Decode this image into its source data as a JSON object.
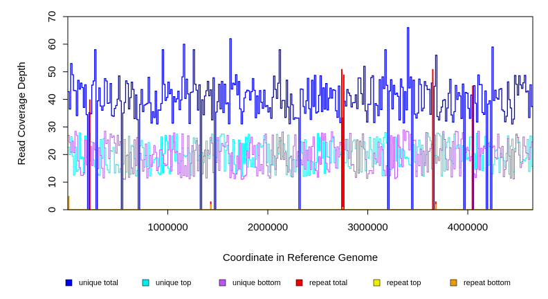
{
  "chart_data": {
    "type": "line",
    "title": "",
    "xlabel": "Coordinate in Reference Genome",
    "ylabel": "Read Coverage Depth",
    "xlim": [
      0,
      4650000
    ],
    "ylim": [
      0,
      70
    ],
    "x_ticks": [
      1000000,
      2000000,
      3000000,
      4000000
    ],
    "y_ticks": [
      0,
      10,
      20,
      30,
      40,
      50,
      60,
      70
    ],
    "grid": false,
    "legend_position": "bottom",
    "series": [
      {
        "key": "unique_total",
        "name": "unique total",
        "color": "#0000ee"
      },
      {
        "key": "unique_top",
        "name": "unique top",
        "color": "#00eeee"
      },
      {
        "key": "unique_bottom",
        "name": "unique bottom",
        "color": "#bb55ee"
      },
      {
        "key": "repeat_total",
        "name": "repeat total",
        "color": "#ee0000"
      },
      {
        "key": "repeat_top",
        "name": "repeat top",
        "color": "#eeee00"
      },
      {
        "key": "repeat_bottom",
        "name": "repeat bottom",
        "color": "#ee9900"
      }
    ],
    "unique_total_peaks": [
      {
        "x": 30000,
        "y": 53
      },
      {
        "x": 270000,
        "y": 58
      },
      {
        "x": 950000,
        "y": 58
      },
      {
        "x": 1160000,
        "y": 60
      },
      {
        "x": 1250000,
        "y": 58
      },
      {
        "x": 1620000,
        "y": 62
      },
      {
        "x": 2120000,
        "y": 58
      },
      {
        "x": 2960000,
        "y": 52
      },
      {
        "x": 3170000,
        "y": 58
      },
      {
        "x": 3400000,
        "y": 66
      },
      {
        "x": 3680000,
        "y": 56
      },
      {
        "x": 4240000,
        "y": 59
      }
    ],
    "unique_total_dropouts": [
      200000,
      280000,
      530000,
      700000,
      1320000,
      1460000,
      2310000,
      2750000,
      3200000,
      3440000,
      3650000,
      3960000,
      4050000,
      4180000,
      4230000
    ],
    "repeat_total_peaks": [
      {
        "x": 220000,
        "y": 40
      },
      {
        "x": 1430000,
        "y": 3
      },
      {
        "x": 2740000,
        "y": 51
      },
      {
        "x": 2760000,
        "y": 49
      },
      {
        "x": 3650000,
        "y": 51
      },
      {
        "x": 3680000,
        "y": 3
      },
      {
        "x": 4050000,
        "y": 45
      }
    ],
    "repeat_bottom_peaks": [
      {
        "x": 10000,
        "y": 5
      },
      {
        "x": 1430000,
        "y": 2
      },
      {
        "x": 2750000,
        "y": 1
      },
      {
        "x": 3680000,
        "y": 2
      }
    ]
  }
}
